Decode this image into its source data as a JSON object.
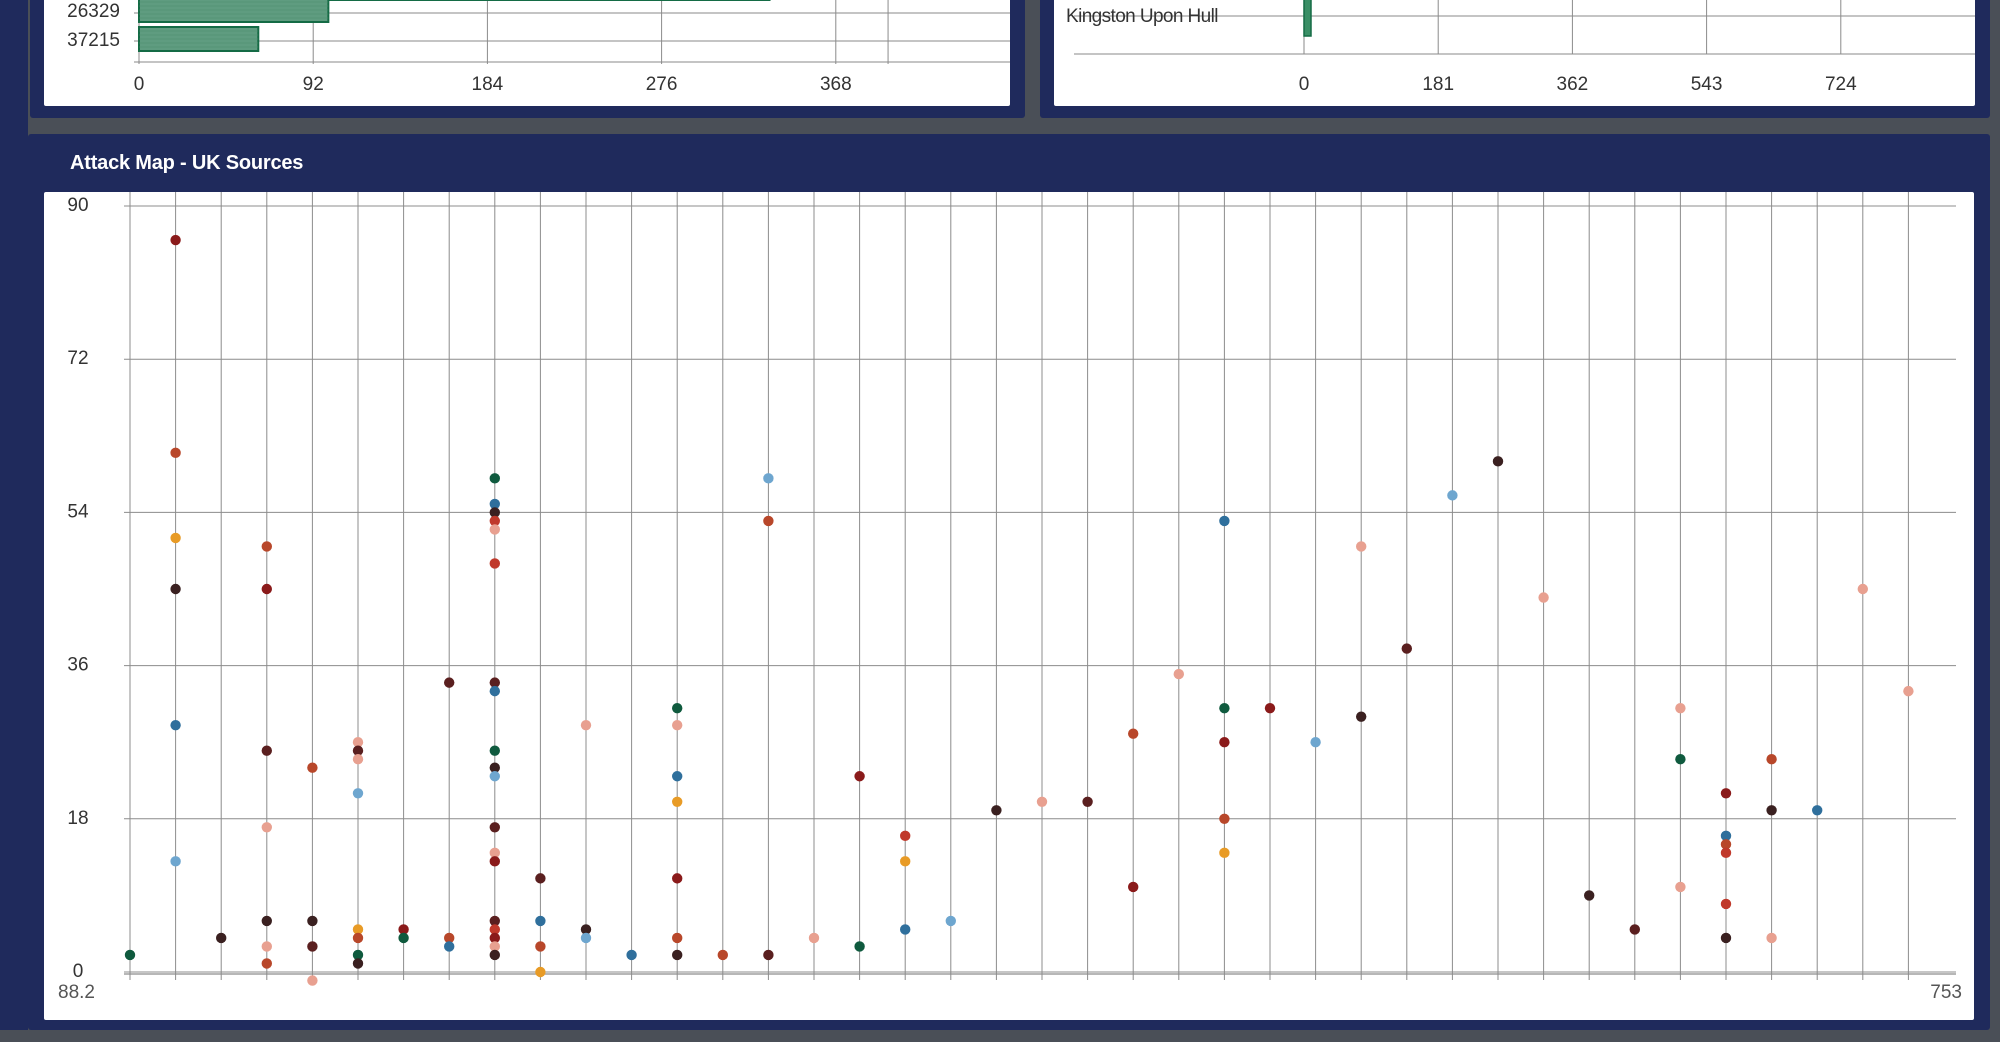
{
  "top_left_panel": {
    "bars": [
      {
        "label": "26329",
        "value": 100
      },
      {
        "label": "37215",
        "value": 63
      }
    ],
    "x_ticks": [
      "0",
      "92",
      "184",
      "276",
      "368"
    ],
    "x_max": 460,
    "top_bar_value": 333,
    "colors": {
      "bar_fill": "#5f9c80",
      "bar_stroke": "#146b45",
      "grid": "#8a8a8a"
    }
  },
  "top_right_panel": {
    "bar_label": "Kingston Upon Hull",
    "bar_value": 4,
    "x_ticks": [
      "0",
      "181",
      "362",
      "543",
      "724"
    ],
    "x_max": 905,
    "colors": {
      "bar_fill": "#3a8f66"
    }
  },
  "attack_map": {
    "title": "Attack Map - UK Sources",
    "chart_data": {
      "type": "scatter",
      "title": "",
      "xlabel": "",
      "ylabel": "",
      "ylim": [
        0,
        90
      ],
      "y_ticks": [
        "0",
        "18",
        "36",
        "54",
        "72",
        "90"
      ],
      "x_first_label": "88.2",
      "x_last_label": "753",
      "x_category_count": 40,
      "grid": true,
      "palette": {
        "dark_green": "#0f5a3e",
        "dark_red": "#8a1a1a",
        "brown": "#5a1f1f",
        "dark_brown": "#3a2020",
        "orange": "#e89b26",
        "salmon": "#e8a090",
        "steel_blue": "#2f6f9c",
        "light_blue": "#6ea6cf",
        "rust": "#b8472a",
        "red": "#c0392b"
      },
      "points": [
        {
          "x": 0,
          "y": 2,
          "c": "dark_green"
        },
        {
          "x": 1,
          "y": 86,
          "c": "dark_red"
        },
        {
          "x": 1,
          "y": 61,
          "c": "rust"
        },
        {
          "x": 1,
          "y": 51,
          "c": "orange"
        },
        {
          "x": 1,
          "y": 45,
          "c": "dark_brown"
        },
        {
          "x": 1,
          "y": 29,
          "c": "steel_blue"
        },
        {
          "x": 1,
          "y": 13,
          "c": "light_blue"
        },
        {
          "x": 2,
          "y": 4,
          "c": "dark_brown"
        },
        {
          "x": 3,
          "y": 50,
          "c": "rust"
        },
        {
          "x": 3,
          "y": 45,
          "c": "dark_red"
        },
        {
          "x": 3,
          "y": 26,
          "c": "brown"
        },
        {
          "x": 3,
          "y": 17,
          "c": "salmon"
        },
        {
          "x": 3,
          "y": 6,
          "c": "dark_brown"
        },
        {
          "x": 3,
          "y": 3,
          "c": "salmon"
        },
        {
          "x": 3,
          "y": 1,
          "c": "rust"
        },
        {
          "x": 4,
          "y": 24,
          "c": "rust"
        },
        {
          "x": 4,
          "y": 6,
          "c": "dark_brown"
        },
        {
          "x": 4,
          "y": 3,
          "c": "brown"
        },
        {
          "x": 4,
          "y": -1,
          "c": "salmon"
        },
        {
          "x": 5,
          "y": 27,
          "c": "salmon"
        },
        {
          "x": 5,
          "y": 26,
          "c": "brown"
        },
        {
          "x": 5,
          "y": 25,
          "c": "salmon"
        },
        {
          "x": 5,
          "y": 21,
          "c": "light_blue"
        },
        {
          "x": 5,
          "y": 5,
          "c": "orange"
        },
        {
          "x": 5,
          "y": 4,
          "c": "rust"
        },
        {
          "x": 5,
          "y": 2,
          "c": "dark_green"
        },
        {
          "x": 5,
          "y": 1,
          "c": "dark_brown"
        },
        {
          "x": 6,
          "y": 5,
          "c": "dark_red"
        },
        {
          "x": 6,
          "y": 4,
          "c": "dark_green"
        },
        {
          "x": 7,
          "y": 34,
          "c": "brown"
        },
        {
          "x": 7,
          "y": 4,
          "c": "rust"
        },
        {
          "x": 7,
          "y": 3,
          "c": "steel_blue"
        },
        {
          "x": 8,
          "y": 58,
          "c": "dark_green"
        },
        {
          "x": 8,
          "y": 55,
          "c": "steel_blue"
        },
        {
          "x": 8,
          "y": 54,
          "c": "dark_brown"
        },
        {
          "x": 8,
          "y": 53,
          "c": "red"
        },
        {
          "x": 8,
          "y": 52,
          "c": "salmon"
        },
        {
          "x": 8,
          "y": 48,
          "c": "red"
        },
        {
          "x": 8,
          "y": 34,
          "c": "brown"
        },
        {
          "x": 8,
          "y": 33,
          "c": "steel_blue"
        },
        {
          "x": 8,
          "y": 26,
          "c": "dark_green"
        },
        {
          "x": 8,
          "y": 24,
          "c": "dark_brown"
        },
        {
          "x": 8,
          "y": 23,
          "c": "light_blue"
        },
        {
          "x": 8,
          "y": 17,
          "c": "brown"
        },
        {
          "x": 8,
          "y": 14,
          "c": "salmon"
        },
        {
          "x": 8,
          "y": 13,
          "c": "dark_red"
        },
        {
          "x": 8,
          "y": 6,
          "c": "brown"
        },
        {
          "x": 8,
          "y": 5,
          "c": "red"
        },
        {
          "x": 8,
          "y": 4,
          "c": "dark_red"
        },
        {
          "x": 8,
          "y": 3,
          "c": "salmon"
        },
        {
          "x": 8,
          "y": 2,
          "c": "dark_brown"
        },
        {
          "x": 9,
          "y": 11,
          "c": "brown"
        },
        {
          "x": 9,
          "y": 6,
          "c": "steel_blue"
        },
        {
          "x": 9,
          "y": 3,
          "c": "rust"
        },
        {
          "x": 9,
          "y": 0,
          "c": "orange"
        },
        {
          "x": 10,
          "y": 29,
          "c": "salmon"
        },
        {
          "x": 10,
          "y": 5,
          "c": "dark_brown"
        },
        {
          "x": 10,
          "y": 4,
          "c": "light_blue"
        },
        {
          "x": 11,
          "y": 2,
          "c": "steel_blue"
        },
        {
          "x": 12,
          "y": 31,
          "c": "dark_green"
        },
        {
          "x": 12,
          "y": 29,
          "c": "salmon"
        },
        {
          "x": 12,
          "y": 23,
          "c": "steel_blue"
        },
        {
          "x": 12,
          "y": 20,
          "c": "orange"
        },
        {
          "x": 12,
          "y": 11,
          "c": "dark_red"
        },
        {
          "x": 12,
          "y": 4,
          "c": "rust"
        },
        {
          "x": 12,
          "y": 2,
          "c": "dark_brown"
        },
        {
          "x": 13,
          "y": 2,
          "c": "rust"
        },
        {
          "x": 14,
          "y": 58,
          "c": "light_blue"
        },
        {
          "x": 14,
          "y": 53,
          "c": "rust"
        },
        {
          "x": 14,
          "y": 2,
          "c": "brown"
        },
        {
          "x": 15,
          "y": 4,
          "c": "salmon"
        },
        {
          "x": 16,
          "y": 23,
          "c": "dark_red"
        },
        {
          "x": 16,
          "y": 3,
          "c": "dark_green"
        },
        {
          "x": 17,
          "y": 16,
          "c": "red"
        },
        {
          "x": 17,
          "y": 13,
          "c": "orange"
        },
        {
          "x": 17,
          "y": 5,
          "c": "steel_blue"
        },
        {
          "x": 18,
          "y": 6,
          "c": "light_blue"
        },
        {
          "x": 19,
          "y": 19,
          "c": "dark_brown"
        },
        {
          "x": 20,
          "y": 20,
          "c": "salmon"
        },
        {
          "x": 21,
          "y": 20,
          "c": "brown"
        },
        {
          "x": 22,
          "y": 28,
          "c": "rust"
        },
        {
          "x": 22,
          "y": 10,
          "c": "dark_red"
        },
        {
          "x": 23,
          "y": 35,
          "c": "salmon"
        },
        {
          "x": 24,
          "y": 53,
          "c": "steel_blue"
        },
        {
          "x": 24,
          "y": 31,
          "c": "dark_green"
        },
        {
          "x": 24,
          "y": 27,
          "c": "dark_red"
        },
        {
          "x": 24,
          "y": 18,
          "c": "rust"
        },
        {
          "x": 24,
          "y": 14,
          "c": "orange"
        },
        {
          "x": 25,
          "y": 31,
          "c": "dark_red"
        },
        {
          "x": 26,
          "y": 27,
          "c": "light_blue"
        },
        {
          "x": 27,
          "y": 50,
          "c": "salmon"
        },
        {
          "x": 27,
          "y": 30,
          "c": "dark_brown"
        },
        {
          "x": 28,
          "y": 38,
          "c": "brown"
        },
        {
          "x": 29,
          "y": 56,
          "c": "light_blue"
        },
        {
          "x": 30,
          "y": 60,
          "c": "dark_brown"
        },
        {
          "x": 31,
          "y": 44,
          "c": "salmon"
        },
        {
          "x": 32,
          "y": 9,
          "c": "dark_brown"
        },
        {
          "x": 33,
          "y": 5,
          "c": "brown"
        },
        {
          "x": 34,
          "y": 31,
          "c": "salmon"
        },
        {
          "x": 34,
          "y": 25,
          "c": "dark_green"
        },
        {
          "x": 34,
          "y": 10,
          "c": "salmon"
        },
        {
          "x": 35,
          "y": 21,
          "c": "dark_red"
        },
        {
          "x": 35,
          "y": 16,
          "c": "steel_blue"
        },
        {
          "x": 35,
          "y": 15,
          "c": "rust"
        },
        {
          "x": 35,
          "y": 14,
          "c": "red"
        },
        {
          "x": 35,
          "y": 8,
          "c": "red"
        },
        {
          "x": 35,
          "y": 4,
          "c": "dark_brown"
        },
        {
          "x": 36,
          "y": 25,
          "c": "rust"
        },
        {
          "x": 36,
          "y": 19,
          "c": "dark_brown"
        },
        {
          "x": 36,
          "y": 4,
          "c": "salmon"
        },
        {
          "x": 37,
          "y": 19,
          "c": "steel_blue"
        },
        {
          "x": 38,
          "y": 45,
          "c": "salmon"
        },
        {
          "x": 39,
          "y": 33,
          "c": "salmon"
        }
      ]
    }
  }
}
